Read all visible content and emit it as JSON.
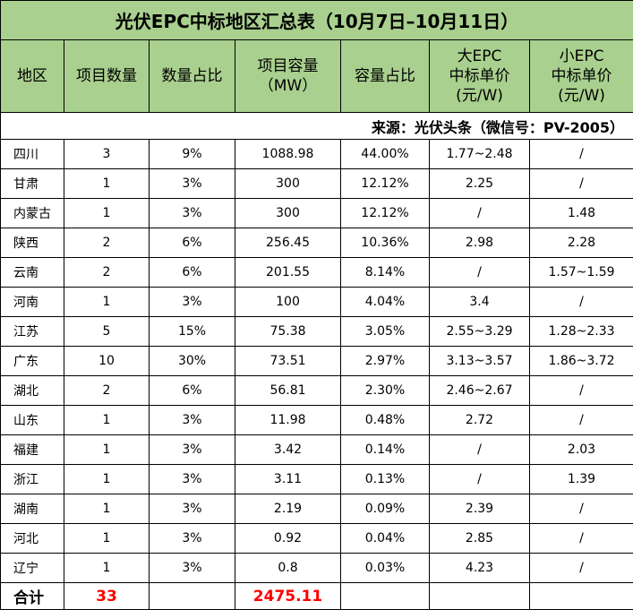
{
  "title": "光伏EPC中标地区汇总表（10月7日–10月11日）",
  "headers": {
    "region": "地区",
    "count": "项目数量",
    "count_share": "数量占比",
    "capacity_line1": "项目容量",
    "capacity_line2": "（MW）",
    "capacity_share": "容量占比",
    "large_line1": "大EPC",
    "large_line2": "中标单价",
    "large_line3": "(元/W)",
    "small_line1": "小EPC",
    "small_line2": "中标单价",
    "small_line3": "(元/W)"
  },
  "source": "来源：光伏头条（微信号：PV-2005）",
  "rows": [
    {
      "region": "四川",
      "count": "3",
      "count_share": "9%",
      "capacity": "1088.98",
      "capacity_share": "44.00%",
      "large_price": "1.77~2.48",
      "small_price": "/"
    },
    {
      "region": "甘肃",
      "count": "1",
      "count_share": "3%",
      "capacity": "300",
      "capacity_share": "12.12%",
      "large_price": "2.25",
      "small_price": "/"
    },
    {
      "region": "内蒙古",
      "count": "1",
      "count_share": "3%",
      "capacity": "300",
      "capacity_share": "12.12%",
      "large_price": "/",
      "small_price": "1.48"
    },
    {
      "region": "陕西",
      "count": "2",
      "count_share": "6%",
      "capacity": "256.45",
      "capacity_share": "10.36%",
      "large_price": "2.98",
      "small_price": "2.28"
    },
    {
      "region": "云南",
      "count": "2",
      "count_share": "6%",
      "capacity": "201.55",
      "capacity_share": "8.14%",
      "large_price": "/",
      "small_price": "1.57~1.59"
    },
    {
      "region": "河南",
      "count": "1",
      "count_share": "3%",
      "capacity": "100",
      "capacity_share": "4.04%",
      "large_price": "3.4",
      "small_price": "/"
    },
    {
      "region": "江苏",
      "count": "5",
      "count_share": "15%",
      "capacity": "75.38",
      "capacity_share": "3.05%",
      "large_price": "2.55~3.29",
      "small_price": "1.28~2.33"
    },
    {
      "region": "广东",
      "count": "10",
      "count_share": "30%",
      "capacity": "73.51",
      "capacity_share": "2.97%",
      "large_price": "3.13~3.57",
      "small_price": "1.86~3.72"
    },
    {
      "region": "湖北",
      "count": "2",
      "count_share": "6%",
      "capacity": "56.81",
      "capacity_share": "2.30%",
      "large_price": "2.46~2.67",
      "small_price": "/"
    },
    {
      "region": "山东",
      "count": "1",
      "count_share": "3%",
      "capacity": "11.98",
      "capacity_share": "0.48%",
      "large_price": "2.72",
      "small_price": "/"
    },
    {
      "region": "福建",
      "count": "1",
      "count_share": "3%",
      "capacity": "3.42",
      "capacity_share": "0.14%",
      "large_price": "/",
      "small_price": "2.03"
    },
    {
      "region": "浙江",
      "count": "1",
      "count_share": "3%",
      "capacity": "3.11",
      "capacity_share": "0.13%",
      "large_price": "/",
      "small_price": "1.39"
    },
    {
      "region": "湖南",
      "count": "1",
      "count_share": "3%",
      "capacity": "2.19",
      "capacity_share": "0.09%",
      "large_price": "2.39",
      "small_price": "/"
    },
    {
      "region": "河北",
      "count": "1",
      "count_share": "3%",
      "capacity": "0.92",
      "capacity_share": "0.04%",
      "large_price": "2.85",
      "small_price": "/"
    },
    {
      "region": "辽宁",
      "count": "1",
      "count_share": "3%",
      "capacity": "0.8",
      "capacity_share": "0.03%",
      "large_price": "4.23",
      "small_price": "/"
    }
  ],
  "total": {
    "label": "合计",
    "count": "33",
    "capacity": "2475.11"
  },
  "colors": {
    "header_bg": "#a9d08e",
    "total_highlight": "#ff0000",
    "border": "#000000"
  }
}
